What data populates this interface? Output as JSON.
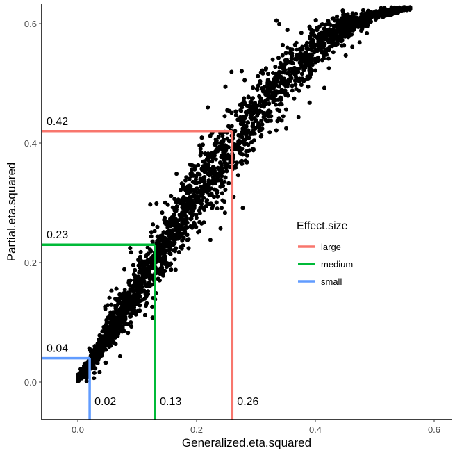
{
  "chart_data": {
    "type": "scatter",
    "xlabel": "Generalized.eta.squared",
    "ylabel": "Partial.eta.squared",
    "xlim": [
      -0.06,
      0.63
    ],
    "ylim": [
      -0.06,
      0.63
    ],
    "xticks": [
      0.0,
      0.2,
      0.4,
      0.6
    ],
    "xtick_labels": [
      "0.0",
      "0.2",
      "0.4",
      "0.6"
    ],
    "yticks": [
      0.0,
      0.2,
      0.4,
      0.6
    ],
    "ytick_labels": [
      "0.0",
      "0.2",
      "0.4",
      "0.6"
    ],
    "grid": false,
    "point_color": "#000000",
    "cloud_envelope": {
      "x": [
        0.0,
        0.02,
        0.05,
        0.1,
        0.15,
        0.2,
        0.25,
        0.3,
        0.35,
        0.4,
        0.45,
        0.5,
        0.55
      ],
      "y_lower": [
        0.0,
        0.01,
        0.04,
        0.09,
        0.15,
        0.22,
        0.29,
        0.36,
        0.43,
        0.5,
        0.56,
        0.6,
        0.62
      ],
      "y_upper": [
        0.01,
        0.05,
        0.12,
        0.22,
        0.32,
        0.41,
        0.48,
        0.54,
        0.59,
        0.62,
        0.63,
        0.63,
        0.63
      ]
    },
    "legend": {
      "title": "Effect.size",
      "placement": "right",
      "entries": [
        {
          "name": "large",
          "color": "#F8766D"
        },
        {
          "name": "medium",
          "color": "#00BA38"
        },
        {
          "name": "small",
          "color": "#619CFF"
        }
      ]
    },
    "thresholds": [
      {
        "name": "large",
        "color": "#F8766D",
        "x": 0.26,
        "y": 0.42,
        "x_label": "0.26",
        "y_label": "0.42"
      },
      {
        "name": "medium",
        "color": "#00BA38",
        "x": 0.13,
        "y": 0.23,
        "x_label": "0.13",
        "y_label": "0.23"
      },
      {
        "name": "small",
        "color": "#619CFF",
        "x": 0.02,
        "y": 0.04,
        "x_label": "0.02",
        "y_label": "0.04"
      }
    ]
  }
}
